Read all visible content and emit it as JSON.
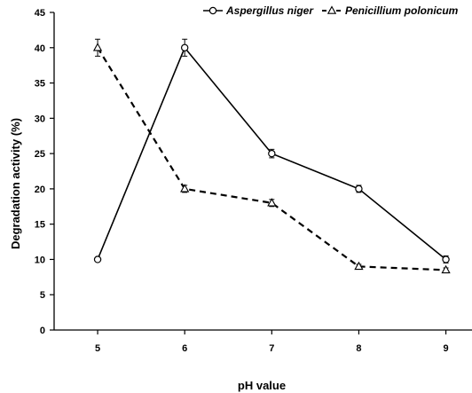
{
  "chart_data": {
    "type": "line",
    "x": [
      5,
      6,
      7,
      8,
      9
    ],
    "xlabel": "pH value",
    "ylabel": "Degradation activity (%)",
    "ylim": [
      0,
      45
    ],
    "yticks": [
      0,
      5,
      10,
      15,
      20,
      25,
      30,
      35,
      40,
      45
    ],
    "xticks": [
      "5",
      "6",
      "7",
      "8",
      "9"
    ],
    "grid": false,
    "legend_position": "top",
    "series": [
      {
        "name": "Aspergillus niger",
        "values": [
          10,
          40,
          25,
          20,
          10
        ],
        "errors": [
          0,
          1.2,
          0.6,
          0.5,
          0.5
        ],
        "line_style": "solid",
        "marker": "circle",
        "color": "#000000"
      },
      {
        "name": "Penicillium polonicum",
        "values": [
          40,
          20,
          18,
          9,
          8.5
        ],
        "errors": [
          1.2,
          0.5,
          0.5,
          0.3,
          0.3
        ],
        "line_style": "dashed",
        "marker": "triangle",
        "color": "#000000"
      }
    ]
  }
}
